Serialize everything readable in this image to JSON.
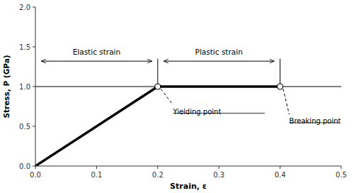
{
  "chart_data": {
    "type": "line",
    "xlabel": "Strain, ε",
    "ylabel": "Stress, P (GPa)",
    "xlim": [
      0.0,
      0.5
    ],
    "ylim": [
      0.0,
      2.0
    ],
    "xticks": [
      {
        "value": 0.0,
        "label": "0.0"
      },
      0.1,
      0.2,
      0.3,
      0.4,
      0.5
    ],
    "yticks": [
      {
        "value": 0.0,
        "label": "0.0"
      },
      0.5,
      {
        "value": 1.0,
        "label": "1.0"
      },
      1.5,
      {
        "value": 2.0,
        "label": "2.0"
      }
    ],
    "series": [
      {
        "type": "line",
        "color": "black",
        "x": [
          0.0,
          0.2
        ],
        "values": [
          0.0,
          1.0
        ]
      },
      {
        "type": "line",
        "color": "black",
        "x": [
          0.2,
          0.4
        ],
        "values": [
          1.0,
          1.0
        ]
      },
      {
        "type": "scatter",
        "marker": "circle",
        "color": "white",
        "x": [
          0.2,
          0.4
        ],
        "values": [
          1.0,
          1.0
        ]
      }
    ],
    "reference_lines": [
      {
        "x": [
          0.0,
          0.5
        ],
        "y": 1.0
      },
      {
        "x": 0.2,
        "y": [
          1.0,
          1.35
        ]
      },
      {
        "x": 0.4,
        "y": [
          1.0,
          1.35
        ]
      }
    ],
    "annotations": [
      {
        "type": "arrow",
        "x": [
          0.01,
          0.19
        ],
        "y": 1.32
      },
      {
        "type": "arrow",
        "x": [
          0.21,
          0.39
        ],
        "y": 1.32
      },
      {
        "type": "label",
        "text": "Elastic strain",
        "x": 0.1,
        "y": 1.38
      },
      {
        "type": "label",
        "text": "Plastic strain",
        "x": 0.3,
        "y": 1.38
      },
      {
        "type": "dash",
        "x": [
          0.205,
          0.225
        ],
        "y": [
          0.97,
          0.77
        ]
      },
      {
        "type": "dash",
        "x": [
          0.405,
          0.415
        ],
        "y": [
          0.97,
          0.65
        ]
      },
      {
        "type": "callout",
        "text": "Yielding point",
        "x": 0.225,
        "y": 0.72
      },
      {
        "type": "callout",
        "text": "Breaking point",
        "x": 0.415,
        "y": 0.6
      },
      {
        "type": "underline",
        "x": [
          0.225,
          0.375
        ],
        "y": 0.665
      },
      {
        "type": "underline",
        "x": [
          0.415,
          0.497
        ],
        "y": 0.545
      }
    ]
  }
}
